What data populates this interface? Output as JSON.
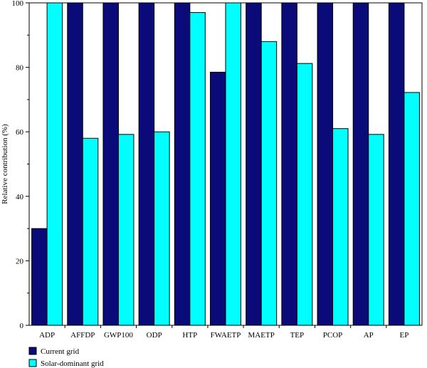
{
  "chart_data": {
    "type": "bar",
    "ylabel": "Relative contribution (%)",
    "xlabel": "",
    "ylim": [
      0,
      100
    ],
    "yticks": [
      "0",
      "20",
      "40",
      "60",
      "80",
      "100"
    ],
    "categories": [
      "ADP",
      "AFFDP",
      "GWP100",
      "ODP",
      "HTP",
      "FWAETP",
      "MAETP",
      "TEP",
      "PCOP",
      "AP",
      "EP"
    ],
    "series": [
      {
        "name": "Current grid",
        "color": "#0a0a78",
        "values": [
          30,
          100,
          100,
          100,
          100,
          78.5,
          100,
          100,
          100,
          100,
          100
        ]
      },
      {
        "name": "Solar-dominant grid",
        "color": "#00ffff",
        "values": [
          100,
          58,
          59.2,
          60,
          97,
          100,
          88,
          81.2,
          61,
          59.2,
          72.2
        ]
      }
    ],
    "legend_position": "bottom-left",
    "grid": false
  }
}
